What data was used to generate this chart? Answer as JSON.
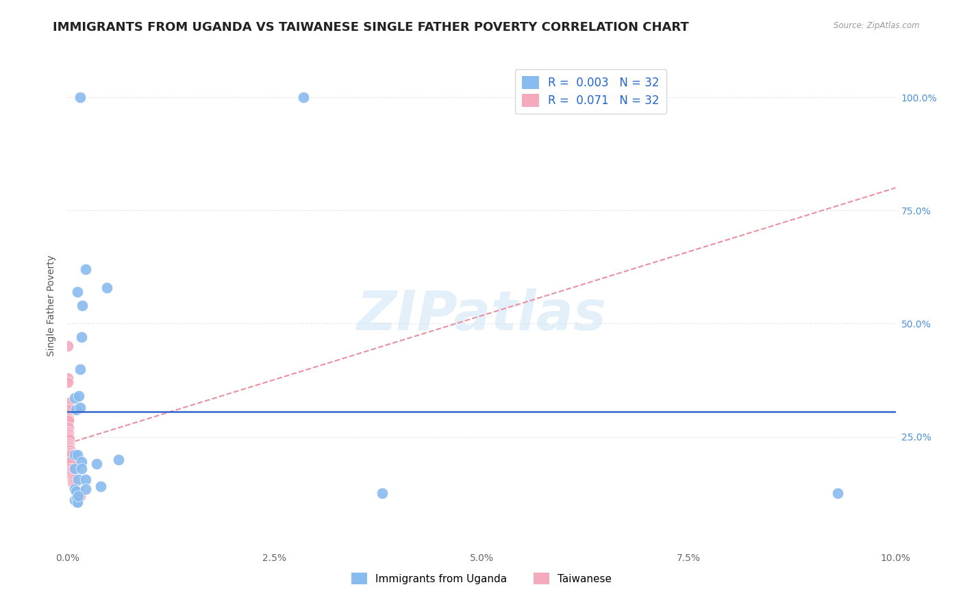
{
  "title": "IMMIGRANTS FROM UGANDA VS TAIWANESE SINGLE FATHER POVERTY CORRELATION CHART",
  "source": "Source: ZipAtlas.com",
  "ylabel_label": "Single Father Poverty",
  "xlim": [
    0.0,
    10.0
  ],
  "ylim": [
    0.0,
    108.0
  ],
  "x_ticks": [
    0.0,
    2.5,
    5.0,
    7.5,
    10.0
  ],
  "x_tick_labels": [
    "0.0%",
    "2.5%",
    "5.0%",
    "7.5%",
    "10.0%"
  ],
  "y_ticks": [
    25.0,
    50.0,
    75.0,
    100.0
  ],
  "y_tick_labels": [
    "25.0%",
    "50.0%",
    "75.0%",
    "100.0%"
  ],
  "right_tick_color": "#4a90d9",
  "legend_top": [
    {
      "label": "R =  0.003   N = 32",
      "color": "#88bbee"
    },
    {
      "label": "R =  0.071   N = 32",
      "color": "#f4aabc"
    }
  ],
  "legend_top_text_color": "#2266cc",
  "legend_bottom": [
    "Immigrants from Uganda",
    "Taiwanese"
  ],
  "watermark": "ZIPatlas",
  "uganda_color": "#88bbee",
  "taiwanese_color": "#f4aabc",
  "uganda_scatter_x": [
    0.15,
    2.85,
    0.12,
    0.18,
    0.17,
    0.22,
    0.48,
    0.15,
    0.09,
    0.14,
    0.1,
    0.15,
    0.09,
    0.12,
    0.17,
    0.09,
    0.17,
    0.13,
    0.22,
    0.09,
    0.1,
    0.11,
    0.22,
    0.09,
    0.11,
    0.12,
    0.13,
    0.35,
    0.62,
    0.4,
    3.8,
    9.3
  ],
  "uganda_scatter_y": [
    100.0,
    100.0,
    57.0,
    54.0,
    47.0,
    62.0,
    58.0,
    40.0,
    33.5,
    34.0,
    31.0,
    31.5,
    21.0,
    21.0,
    19.5,
    18.0,
    18.0,
    15.5,
    15.5,
    13.5,
    13.0,
    10.5,
    13.5,
    11.0,
    11.5,
    10.5,
    12.0,
    19.0,
    20.0,
    14.0,
    12.5,
    12.5
  ],
  "taiwanese_scatter_x": [
    0.005,
    0.005,
    0.005,
    0.005,
    0.005,
    0.01,
    0.01,
    0.01,
    0.01,
    0.015,
    0.015,
    0.02,
    0.02,
    0.02,
    0.025,
    0.03,
    0.03,
    0.035,
    0.035,
    0.04,
    0.04,
    0.045,
    0.05,
    0.05,
    0.055,
    0.06,
    0.065,
    0.075,
    0.085,
    0.1,
    0.12,
    0.15
  ],
  "taiwanese_scatter_y": [
    45.0,
    38.0,
    37.0,
    32.5,
    31.0,
    29.0,
    28.5,
    27.0,
    26.0,
    25.5,
    25.0,
    24.5,
    23.5,
    23.0,
    22.5,
    22.0,
    21.5,
    21.0,
    19.5,
    19.5,
    18.0,
    17.5,
    17.0,
    16.5,
    16.0,
    15.5,
    15.0,
    14.5,
    14.0,
    13.5,
    13.0,
    12.0
  ],
  "blue_line_y": 30.5,
  "blue_line_color": "#3366cc",
  "pink_trend_x": [
    0.0,
    10.0
  ],
  "pink_trend_y": [
    23.5,
    80.0
  ],
  "pink_line_color": "#e8909e",
  "background_color": "#ffffff",
  "grid_color": "#e8e8e8",
  "title_fontsize": 13,
  "axis_label_fontsize": 10,
  "tick_fontsize": 10,
  "legend_fontsize": 12
}
